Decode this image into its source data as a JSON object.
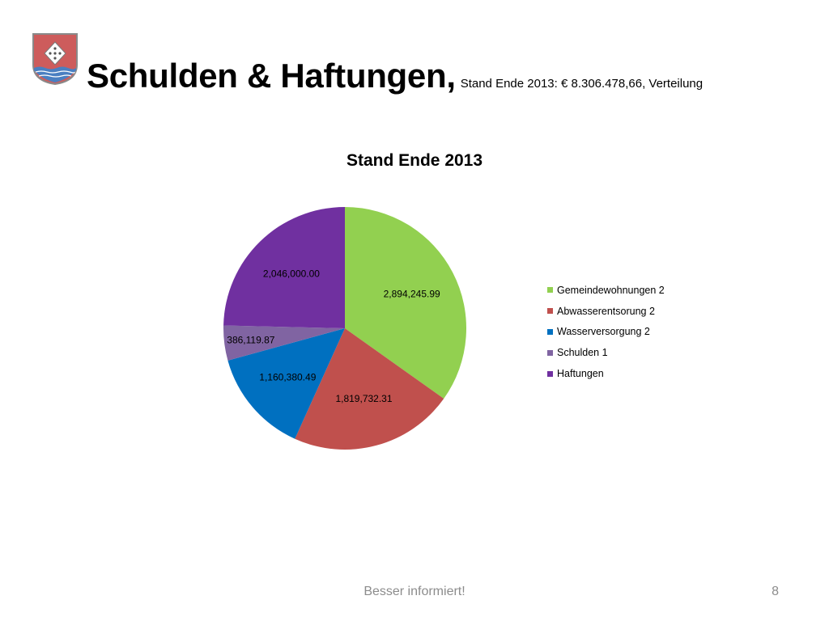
{
  "header": {
    "title": "Schulden & Haftungen,",
    "subtitle": "Stand Ende 2013: € 8.306.478,66, Verteilung",
    "crest_icon": "municipal-coat-of-arms"
  },
  "chart_data": {
    "type": "pie",
    "title": "Stand Ende 2013",
    "legend_position": "right",
    "slices": [
      {
        "name": "Gemeindewohnungen 2",
        "value": 2894245.99,
        "label": "2,894,245.99",
        "color": "#92d050"
      },
      {
        "name": "Abwasserentsorung 2",
        "value": 1819732.31,
        "label": "1,819,732.31",
        "color": "#c0504d"
      },
      {
        "name": "Wasserversorgung 2",
        "value": 1160380.49,
        "label": "1,160,380.49",
        "color": "#0070c0"
      },
      {
        "name": "Schulden 1",
        "value": 386119.87,
        "label": "386,119.87",
        "color": "#8064a2"
      },
      {
        "name": "Haftungen",
        "value": 2046000.0,
        "label": "2,046,000.00",
        "color": "#7030a0"
      }
    ]
  },
  "footer": {
    "text": "Besser informiert!",
    "page_number": "8"
  }
}
